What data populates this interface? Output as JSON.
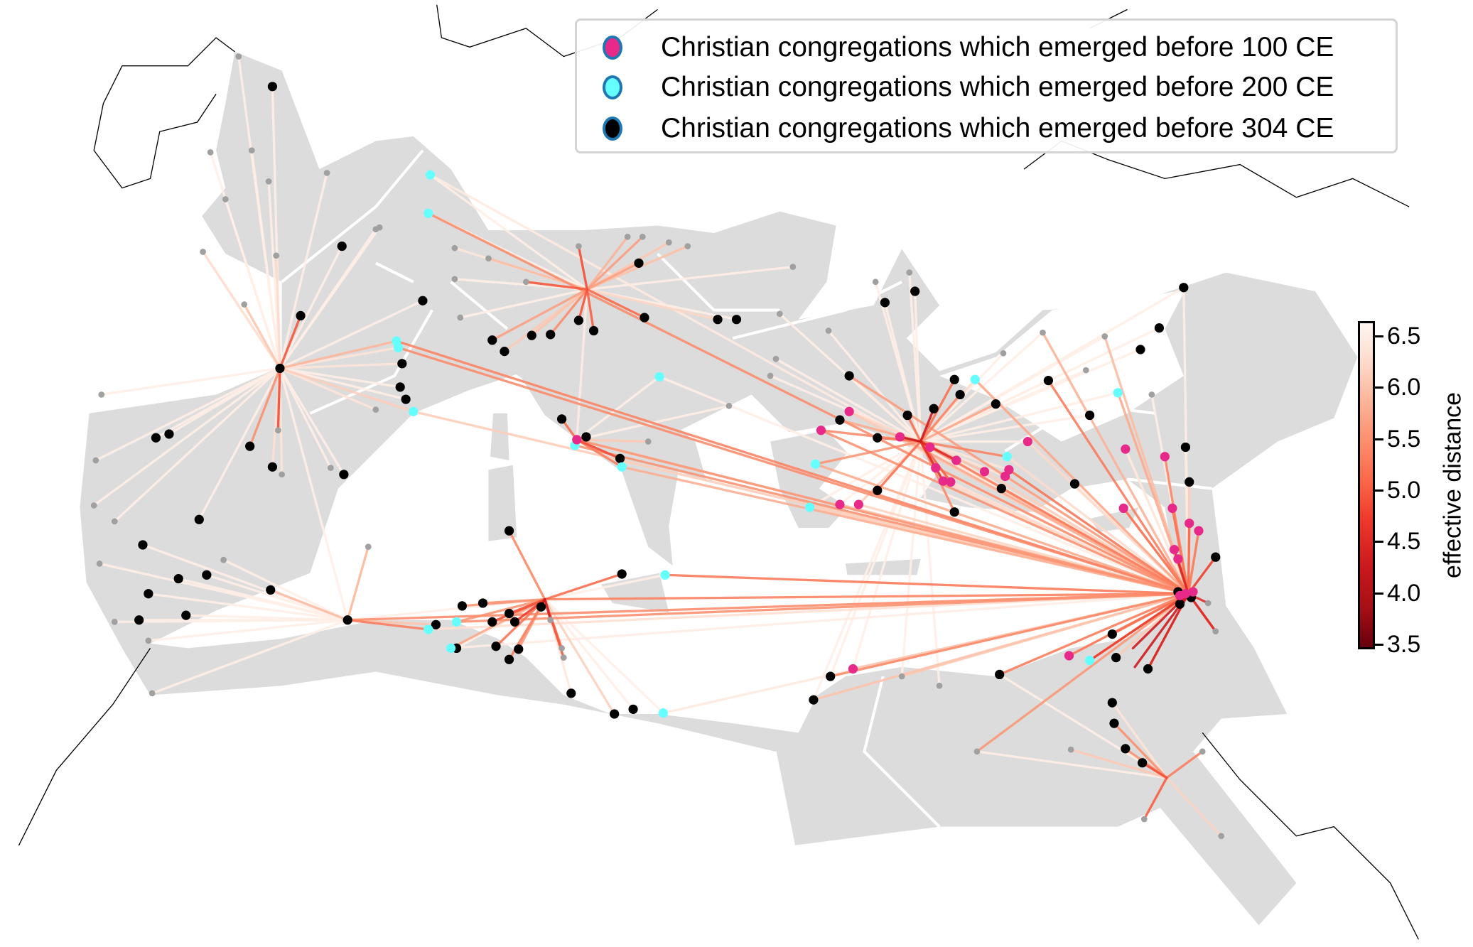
{
  "legend": {
    "items": [
      {
        "label": "Christian congregations which emerged before 100 CE",
        "color": "#e7298a"
      },
      {
        "label": "Christian congregations which emerged before 200 CE",
        "color": "#66ffff"
      },
      {
        "label": "Christian congregations which emerged before 304 CE",
        "color": "#000000"
      }
    ],
    "marker_edge_color": "#1f77b4"
  },
  "colorbar": {
    "label": "effective distance",
    "colormap": "Reds_r",
    "range": [
      3.45,
      6.6
    ],
    "ticks": [
      "6.5",
      "6.0",
      "5.5",
      "5.0",
      "4.5",
      "4.0",
      "3.5"
    ]
  },
  "map": {
    "land_color": "#dcdcdc",
    "boundary_color": "#ffffff",
    "unreached_site_color": "#a0a0a0"
  }
}
